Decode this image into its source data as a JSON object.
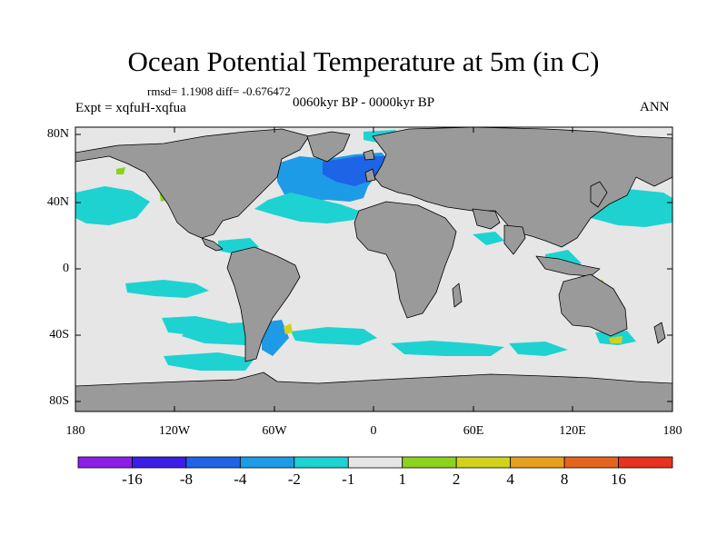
{
  "title": "Ocean Potential Temperature at 5m (in C)",
  "stats": "rmsd= 1.1908 diff= -0.676472",
  "experiment": "Expt = xqfuH-xqfua",
  "period": "0060kyr BP - 0000kyr BP",
  "season": "ANN",
  "y_axis_labels": [
    "80N",
    "40N",
    "0",
    "40S",
    "80S"
  ],
  "x_axis_labels": [
    "180",
    "120W",
    "60W",
    "0",
    "60E",
    "120E",
    "180"
  ],
  "colorbar": {
    "labels": [
      "-16",
      "-8",
      "-4",
      "-2",
      "-1",
      "1",
      "2",
      "4",
      "8",
      "16"
    ],
    "colors": [
      "#8c1ee6",
      "#3c1ee6",
      "#1e64e6",
      "#1e9be6",
      "#1ed2d2",
      "#e6e6e6",
      "#8cd21e",
      "#d2d21e",
      "#e6a01e",
      "#e6641e",
      "#e6321e"
    ]
  },
  "colors": {
    "land": "#9a9a9a",
    "ocean_neutral": "#e6e6e6",
    "cool_1": "#1ed2d2",
    "cool_2": "#1e9be6",
    "cool_3": "#1e64e6",
    "warm_1": "#8cd21e"
  }
}
